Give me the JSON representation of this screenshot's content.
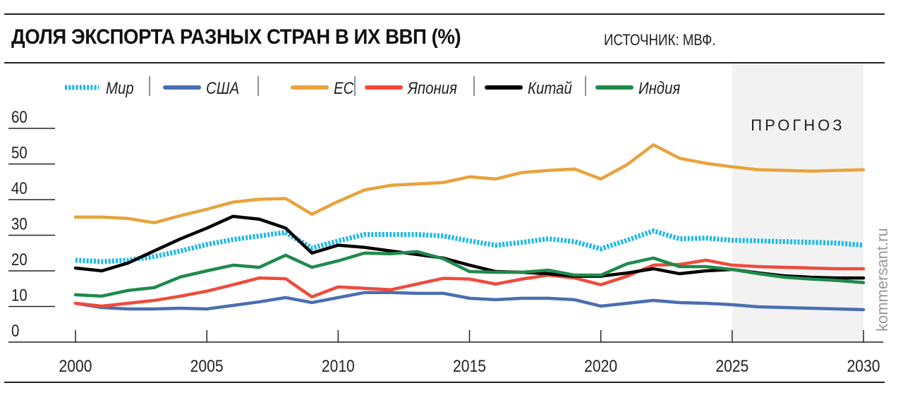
{
  "header": {
    "title": "ДОЛЯ ЭКСПОРТА РАЗНЫХ СТРАН В ИХ ВВП (%)",
    "source": "ИСТОЧНИК: МВФ."
  },
  "watermark": "kommersant.ru",
  "chart_data": {
    "type": "line",
    "title": "ДОЛЯ ЭКСПОРТА РАЗНЫХ СТРАН В ИХ ВВП (%)",
    "xlim": [
      2000,
      2030
    ],
    "ylim": [
      0,
      60
    ],
    "x_ticks": [
      "2000",
      "2005",
      "2010",
      "2015",
      "2020",
      "2025",
      "2030"
    ],
    "y_ticks": [
      "0",
      "10",
      "20",
      "30",
      "40",
      "50",
      "60"
    ],
    "grid": false,
    "legend_position": "top",
    "forecast": {
      "label": "ПРОГНОЗ",
      "from": 2025,
      "to": 2030,
      "color": "#f2f2f2"
    },
    "x": [
      2000,
      2001,
      2002,
      2003,
      2004,
      2005,
      2006,
      2007,
      2008,
      2009,
      2010,
      2011,
      2012,
      2013,
      2014,
      2015,
      2016,
      2017,
      2018,
      2019,
      2020,
      2021,
      2022,
      2023,
      2024,
      2025,
      2026,
      2027,
      2028,
      2029,
      2030
    ],
    "series": [
      {
        "name": "Мир",
        "color": "#1ab8e8",
        "dashed": true,
        "values": [
          23,
          22.6,
          23,
          24,
          25.6,
          27.4,
          28.8,
          29.8,
          30.8,
          26.4,
          28.4,
          30.2,
          30.2,
          30.2,
          29.8,
          28.4,
          27.2,
          28,
          29,
          28.2,
          26.2,
          28.6,
          31.2,
          29,
          29.2,
          28.6,
          28.4,
          28.2,
          28,
          27.8,
          27.2
        ]
      },
      {
        "name": "США",
        "color": "#4a6fb0",
        "values": [
          10.9,
          9.7,
          9.3,
          9.3,
          9.5,
          9.3,
          10.3,
          11.3,
          12.5,
          11.1,
          12.5,
          13.9,
          13.9,
          13.7,
          13.7,
          12.3,
          11.9,
          12.3,
          12.3,
          11.9,
          10.1,
          10.9,
          11.7,
          11.1,
          10.9,
          10.5,
          9.9,
          9.7,
          9.5,
          9.3,
          9.1
        ]
      },
      {
        "name": "ЕС",
        "color": "#e8a33c",
        "values": [
          35.1,
          35.1,
          34.7,
          33.5,
          35.5,
          37.3,
          39.3,
          40.1,
          40.3,
          35.9,
          39.5,
          42.7,
          44,
          44.4,
          44.8,
          46.4,
          45.8,
          47.6,
          48.2,
          48.6,
          45.8,
          49.8,
          55.4,
          51.6,
          50.2,
          49.2,
          48.4,
          48.2,
          48,
          48.2,
          48.4
        ]
      },
      {
        "name": "Япония",
        "color": "#ee4b3c",
        "values": [
          10.9,
          10.1,
          10.9,
          11.7,
          12.9,
          14.3,
          16.1,
          18,
          17.8,
          12.7,
          15.5,
          15.1,
          14.7,
          16.3,
          17.9,
          17.7,
          16.3,
          17.7,
          18.8,
          18,
          16.1,
          18.5,
          21.6,
          21.8,
          23,
          21.6,
          21.2,
          21,
          20.8,
          20.6,
          20.6
        ]
      },
      {
        "name": "Китай",
        "color": "#000000",
        "values": [
          20.8,
          20,
          22.2,
          25.6,
          29,
          32,
          35.3,
          34.5,
          32,
          25,
          27.2,
          26.6,
          25.6,
          24.6,
          23.6,
          21.6,
          19.8,
          19.6,
          19.2,
          18.5,
          18.5,
          19.4,
          20.6,
          19.2,
          20,
          20.4,
          19.4,
          18.6,
          18.2,
          18,
          18
        ]
      },
      {
        "name": "Индия",
        "color": "#1f8a4c",
        "values": [
          13.3,
          12.9,
          14.5,
          15.3,
          18.3,
          20,
          21.6,
          21,
          24.4,
          21,
          22.8,
          25,
          24.8,
          25.4,
          23.4,
          19.8,
          19.6,
          19.6,
          20.2,
          18.8,
          18.8,
          22,
          23.6,
          21.2,
          21.2,
          20.4,
          19.2,
          18.2,
          17.7,
          17.3,
          16.7
        ]
      }
    ]
  }
}
